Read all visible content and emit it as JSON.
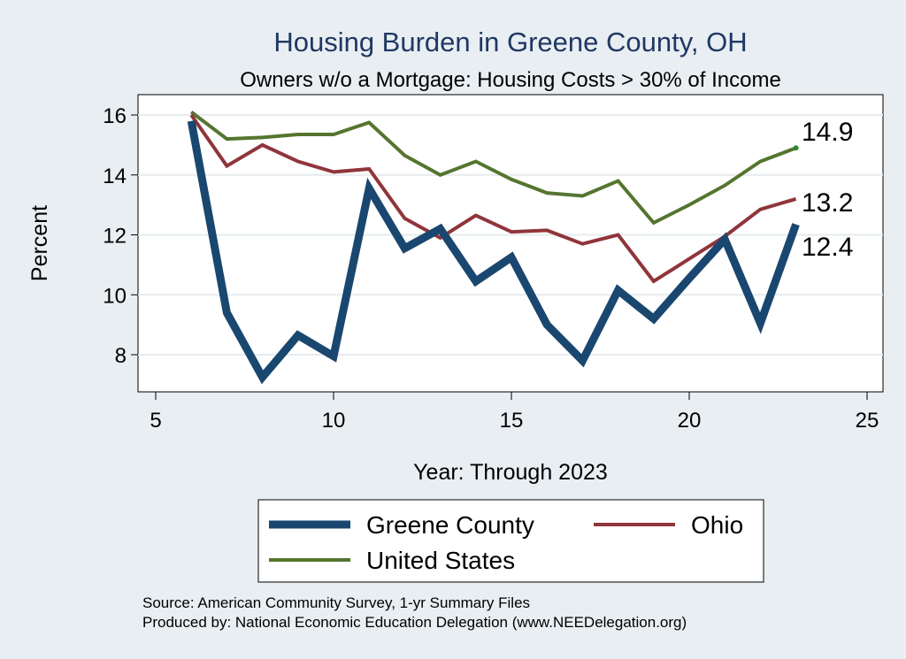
{
  "chart_data": {
    "type": "line",
    "title": "Housing Burden in Greene County, OH",
    "subtitle": "Owners w/o a Mortgage: Housing Costs > 30% of Income",
    "xlabel": "Year: Through 2023",
    "ylabel": "Percent",
    "xlim": [
      5,
      25
    ],
    "ylim": [
      7,
      16.6
    ],
    "xticks": [
      5,
      10,
      15,
      20,
      25
    ],
    "yticks": [
      8,
      10,
      12,
      14,
      16
    ],
    "grid": true,
    "legend_position": "bottom",
    "x": [
      6,
      7,
      8,
      9,
      10,
      11,
      12,
      13,
      14,
      15,
      16,
      17,
      18,
      19,
      20,
      21,
      22,
      23
    ],
    "series": [
      {
        "name": "Greene County",
        "color": "#1a476f",
        "values": [
          15.8,
          9.4,
          7.25,
          8.65,
          7.95,
          13.55,
          11.55,
          12.2,
          10.45,
          11.25,
          9.0,
          7.8,
          10.15,
          9.2,
          10.55,
          11.85,
          9.05,
          12.35
        ]
      },
      {
        "name": "Ohio",
        "color": "#90353b",
        "values": [
          16.0,
          14.3,
          15.0,
          14.45,
          14.1,
          14.2,
          12.55,
          11.9,
          12.65,
          12.1,
          12.15,
          11.7,
          12.0,
          10.45,
          11.2,
          11.95,
          12.85,
          13.2
        ]
      },
      {
        "name": "United States",
        "color": "#55752f",
        "values": [
          16.1,
          15.2,
          15.25,
          15.35,
          15.35,
          15.75,
          14.65,
          14.0,
          14.45,
          13.85,
          13.4,
          13.3,
          13.8,
          12.4,
          13.0,
          13.65,
          14.45,
          14.9
        ]
      }
    ],
    "end_labels": [
      {
        "series": "United States",
        "text": "14.9"
      },
      {
        "series": "Ohio",
        "text": "13.2"
      },
      {
        "series": "Greene County",
        "text": "12.4"
      }
    ],
    "source_lines": [
      "Source: American Community Survey, 1-yr Summary Files",
      "Produced by: National Economic Education Delegation (www.NEEDelegation.org)"
    ]
  }
}
